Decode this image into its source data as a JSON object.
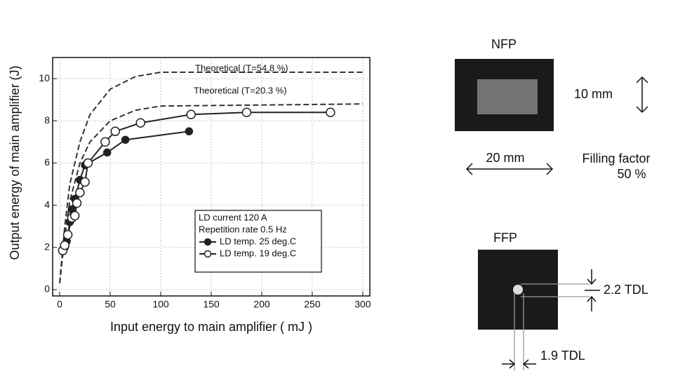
{
  "chart_data": {
    "type": "line",
    "x_label": "Input energy to main amplifier ( mJ )",
    "y_label": "Output energy of main amplifier (J)",
    "xlim": [
      -7,
      307
    ],
    "ylim": [
      -0.3,
      11
    ],
    "xticks": [
      0,
      50,
      100,
      150,
      200,
      250,
      300
    ],
    "yticks": [
      0,
      2,
      4,
      6,
      8,
      10
    ],
    "grid": true,
    "legend_title": [
      "LD current 120 A",
      "Repetition rate 0.5 Hz"
    ],
    "series": [
      {
        "name": "Theoretical (T=54.8 %)",
        "color": "#333333",
        "dashed": true,
        "marker": "none",
        "x": [
          0,
          5,
          10,
          20,
          30,
          50,
          75,
          100,
          300
        ],
        "values": [
          0.3,
          3,
          5,
          7,
          8.3,
          9.5,
          10.1,
          10.3,
          10.3
        ]
      },
      {
        "name": "Theoretical (T=20.3 %)",
        "color": "#333333",
        "dashed": true,
        "marker": "none",
        "x": [
          0,
          5,
          10,
          20,
          30,
          50,
          75,
          100,
          300
        ],
        "values": [
          0.3,
          2.5,
          4.2,
          6,
          7,
          8,
          8.5,
          8.7,
          8.8
        ]
      },
      {
        "name": "LD temp. 25 deg.C",
        "color": "#222222",
        "dashed": false,
        "marker": "filled",
        "x": [
          5,
          7,
          10,
          12,
          15,
          20,
          25,
          47,
          65,
          128
        ],
        "values": [
          2.0,
          2.3,
          3.2,
          3.8,
          4.3,
          5.2,
          5.9,
          6.5,
          7.1,
          7.5
        ]
      },
      {
        "name": "LD temp. 19 deg.C",
        "color": "#222222",
        "dashed": false,
        "marker": "open",
        "x": [
          3,
          5,
          8,
          12,
          15,
          17,
          20,
          25,
          28,
          45,
          55,
          80,
          130,
          185,
          268
        ],
        "values": [
          1.85,
          2.1,
          2.6,
          3.4,
          3.5,
          4.1,
          4.6,
          5.1,
          6.0,
          7.0,
          7.5,
          7.9,
          8.3,
          8.4,
          8.4
        ]
      }
    ]
  },
  "images": {
    "nfp": {
      "title": "NFP",
      "height_label": "10 mm",
      "width_label": "20 mm"
    },
    "filling_factor": [
      "Filling factor",
      "50 %"
    ],
    "ffp": {
      "title": "FFP",
      "height_label": "2.2 TDL",
      "width_label": "1.9 TDL"
    }
  }
}
